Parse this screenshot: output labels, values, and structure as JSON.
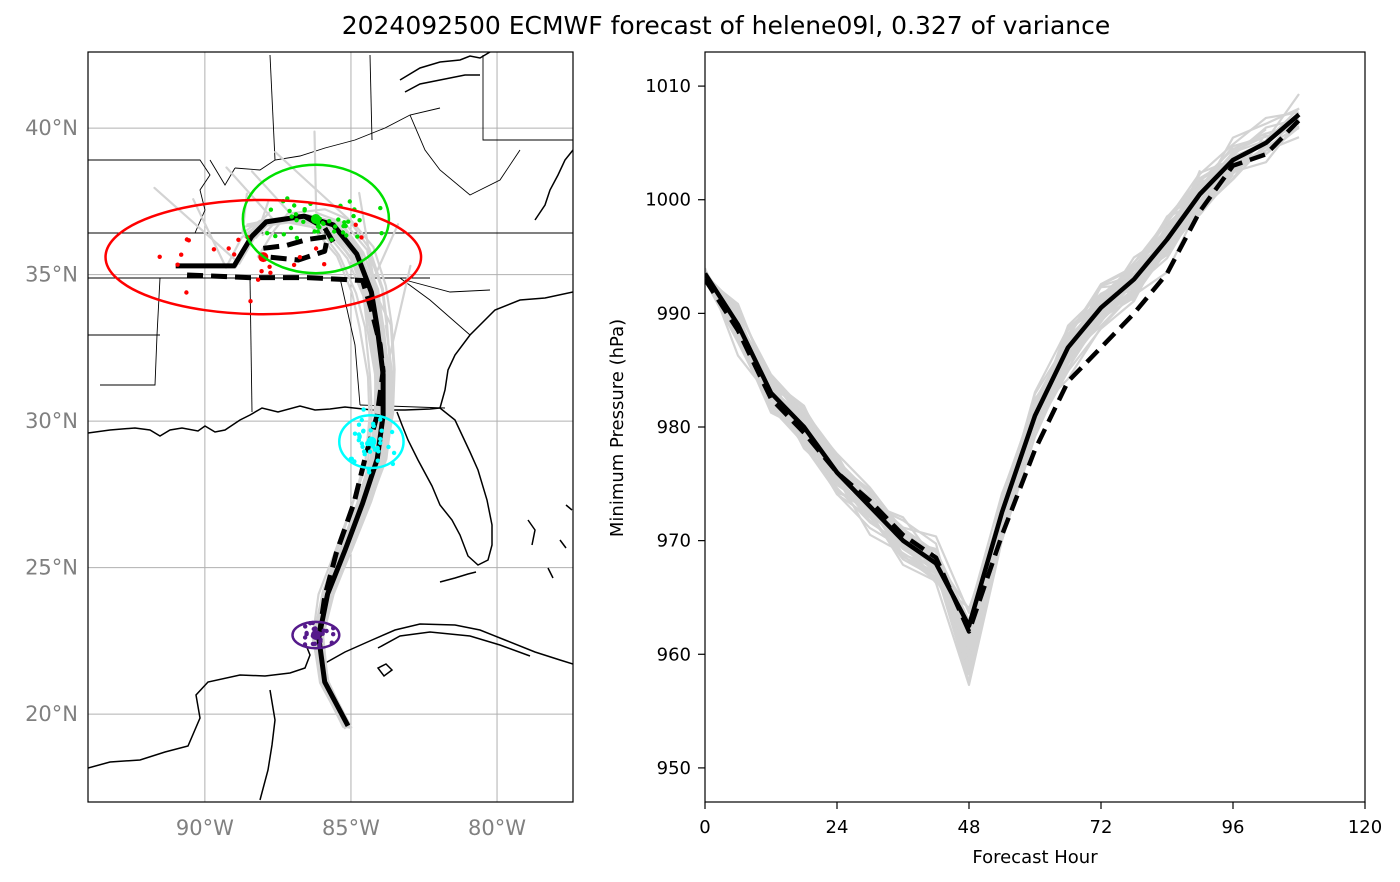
{
  "figure": {
    "title": "2024092500 ECMWF forecast of helene09l, 0.327 of variance"
  },
  "colors": {
    "ensemble": "#d3d3d3",
    "mean": "#000000",
    "t24": "#00e000",
    "t48": "#00ffff",
    "t72": "#ff0000",
    "t0": "#551a8b",
    "tick_map": "#808080"
  },
  "chart_data": [
    {
      "type": "map",
      "panel": "track-map",
      "xlim": [
        -94,
        -77.4
      ],
      "ylim": [
        17,
        42.6
      ],
      "x_ticks": [
        -90,
        -85,
        -80
      ],
      "x_tick_labels": [
        "90°W",
        "85°W",
        "80°W"
      ],
      "y_ticks": [
        20,
        25,
        30,
        35,
        40
      ],
      "y_tick_labels": [
        "20°N",
        "25°N",
        "30°N",
        "35°N",
        "40°N"
      ],
      "grid": true,
      "series": [
        {
          "style": "solid",
          "points": [
            [
              -85.1,
              19.6
            ],
            [
              -85.9,
              21.1
            ],
            [
              -86.1,
              22.6
            ],
            [
              -85.8,
              24.1
            ],
            [
              -85.2,
              25.6
            ],
            [
              -84.6,
              27.2
            ],
            [
              -84.1,
              28.7
            ],
            [
              -83.9,
              30.2
            ],
            [
              -83.9,
              31.6
            ],
            [
              -84.1,
              33.2
            ],
            [
              -84.3,
              34.4
            ],
            [
              -84.8,
              35.7
            ],
            [
              -85.6,
              36.7
            ],
            [
              -86.6,
              37.0
            ],
            [
              -87.9,
              36.8
            ],
            [
              -88.4,
              36.3
            ],
            [
              -89.0,
              35.3
            ],
            [
              -91.0,
              35.3
            ]
          ]
        },
        {
          "style": "dashed",
          "points": [
            [
              -86.1,
              22.6
            ],
            [
              -85.9,
              24.0
            ],
            [
              -85.5,
              25.5
            ],
            [
              -84.9,
              27.2
            ],
            [
              -84.5,
              28.8
            ],
            [
              -84.1,
              30.2
            ],
            [
              -83.9,
              31.7
            ],
            [
              -84.0,
              32.6
            ],
            [
              -84.3,
              33.8
            ],
            [
              -84.6,
              34.8
            ],
            [
              -86.5,
              34.9
            ],
            [
              -88.5,
              34.9
            ],
            [
              -90.8,
              35.0
            ]
          ]
        },
        {
          "style": "dashed",
          "points": [
            [
              -88.0,
              35.9
            ],
            [
              -87.2,
              36.0
            ],
            [
              -86.5,
              36.2
            ],
            [
              -85.8,
              36.3
            ],
            [
              -85.9,
              35.8
            ],
            [
              -86.8,
              35.5
            ],
            [
              -87.8,
              35.6
            ]
          ]
        },
        {
          "style": "dashed",
          "points": [
            [
              -86.6,
              37.0
            ],
            [
              -85.9,
              36.6
            ],
            [
              -85.6,
              36.1
            ]
          ]
        }
      ],
      "ellipses": [
        {
          "name": "t0",
          "center": [
            -86.2,
            22.7
          ],
          "semi_axes_deg": [
            0.8,
            0.45
          ]
        },
        {
          "name": "t24",
          "center": [
            -86.2,
            36.9
          ],
          "semi_axes_deg": [
            2.5,
            1.85
          ]
        },
        {
          "name": "t48",
          "center": [
            -84.3,
            29.3
          ],
          "semi_axes_deg": [
            1.1,
            0.9
          ]
        },
        {
          "name": "t72",
          "center": [
            -88.0,
            35.6
          ],
          "semi_axes_deg": [
            5.4,
            1.95
          ]
        }
      ]
    },
    {
      "type": "line",
      "panel": "pressure",
      "xlabel": "Forecast Hour",
      "ylabel": "Minimum Pressure (hPa)",
      "xlim": [
        0,
        120
      ],
      "ylim": [
        947,
        1013
      ],
      "x_ticks": [
        0,
        24,
        48,
        72,
        96,
        120
      ],
      "y_ticks": [
        950,
        960,
        970,
        980,
        990,
        1000,
        1010
      ],
      "series": [
        {
          "style": "solid",
          "x": [
            0,
            6,
            12,
            18,
            24,
            30,
            36,
            42,
            48,
            54,
            60,
            66,
            72,
            78,
            84,
            90,
            96,
            102,
            108
          ],
          "y": [
            993.5,
            989,
            983,
            980,
            976,
            973,
            970,
            968,
            962.5,
            972.5,
            981,
            987,
            990.5,
            993,
            996.5,
            1000.5,
            1003.5,
            1005,
            1007.5
          ]
        },
        {
          "style": "dashed",
          "x": [
            0,
            6,
            12,
            18,
            24,
            30,
            36,
            42,
            48,
            54,
            60,
            66,
            72,
            78,
            84,
            90,
            96,
            102,
            108
          ],
          "y": [
            993,
            988.5,
            982.5,
            979.5,
            976,
            973.5,
            970.5,
            968.5,
            962,
            970.5,
            978,
            984,
            987,
            990,
            993.5,
            999,
            1003,
            1004,
            1007
          ]
        }
      ]
    }
  ]
}
